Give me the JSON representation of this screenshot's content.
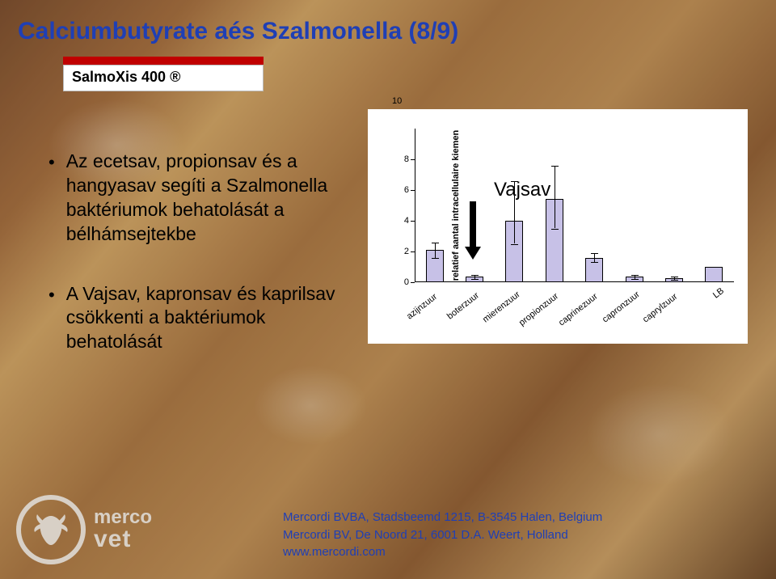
{
  "title": "Calciumbutyrate aés Szalmonella (8/9)",
  "subtitle": "SalmoXis 400 ®",
  "bullets": [
    "Az ecetsav, propionsav és a hangyasav segíti a Szalmonella baktériumok behatolását a bélhámsejtekbe",
    "A Vajsav, kapronsav és kaprilsav csökkenti a baktériumok behatolását"
  ],
  "chart": {
    "type": "bar",
    "y_axis_title": "relatief aantal intracellulaire kiemen",
    "ylim": [
      0,
      10
    ],
    "ytick_step": 2,
    "yticks": [
      0,
      2,
      4,
      6,
      8
    ],
    "top_label": "10",
    "categories": [
      "azijnzuur",
      "boterzuur",
      "mierenzuur",
      "propionzuur",
      "caprinezuur",
      "capronzuur",
      "caprylzuur",
      "LB"
    ],
    "values": [
      2.1,
      0.35,
      4.0,
      5.4,
      1.6,
      0.35,
      0.25,
      1.0
    ],
    "err_low": [
      1.6,
      0.2,
      2.5,
      3.5,
      1.3,
      0.2,
      0.15,
      1.0
    ],
    "err_high": [
      2.6,
      0.5,
      6.6,
      7.6,
      1.9,
      0.5,
      0.35,
      1.0
    ],
    "bar_color": "#c7c1e7",
    "bar_border": "#000000",
    "background_color": "#ffffff",
    "axis_color": "#000000",
    "label_fontsize": 11,
    "annotation": {
      "text": "Vajsav",
      "fontsize": 24,
      "color": "#000000"
    }
  },
  "logo": {
    "line1": "merco",
    "line2": "vet"
  },
  "footer": {
    "line1": "Mercordi BVBA, Stadsbeemd 1215, B-3545 Halen, Belgium",
    "line2": "Mercordi BV, De Noord 21, 6001 D.A. Weert, Holland",
    "line3": "www.mercordi.com"
  },
  "colors": {
    "title": "#1f3fb5",
    "subtitle_bar": "#c00000",
    "footer": "#1f3fb5",
    "logo": "#d8d0c6"
  }
}
